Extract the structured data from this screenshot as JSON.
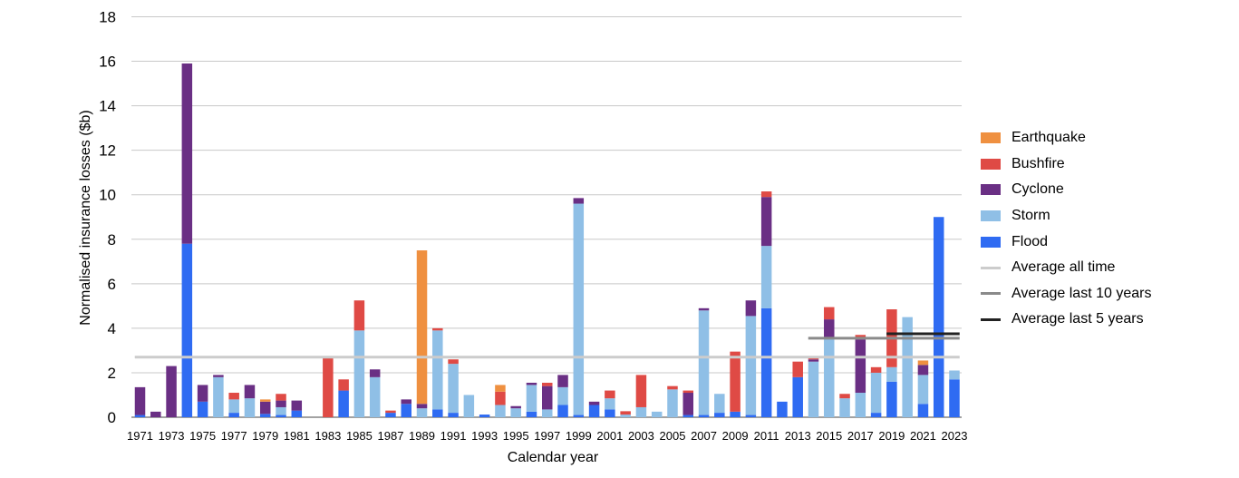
{
  "chart_data": {
    "type": "bar",
    "stacked": true,
    "xlabel": "Calendar year",
    "ylabel": "Normalised insurance losses ($b)",
    "ylim": [
      0,
      18
    ],
    "y_ticks": [
      "0",
      "2",
      "4",
      "6",
      "8",
      "10",
      "12",
      "14",
      "16",
      "18"
    ],
    "grid": true,
    "legend_position": "right",
    "categories": [
      "1971",
      "1972",
      "1973",
      "1974",
      "1975",
      "1976",
      "1977",
      "1978",
      "1979",
      "1980",
      "1981",
      "1982",
      "1983",
      "1984",
      "1985",
      "1986",
      "1987",
      "1988",
      "1989",
      "1990",
      "1991",
      "1992",
      "1993",
      "1994",
      "1995",
      "1996",
      "1997",
      "1998",
      "1999",
      "2000",
      "2001",
      "2002",
      "2003",
      "2004",
      "2005",
      "2006",
      "2007",
      "2008",
      "2009",
      "2010",
      "2011",
      "2012",
      "2013",
      "2014",
      "2015",
      "2016",
      "2017",
      "2018",
      "2019",
      "2020",
      "2021",
      "2022",
      "2023"
    ],
    "x_tick_labels": [
      "1971",
      "1973",
      "1975",
      "1977",
      "1979",
      "1981",
      "1983",
      "1985",
      "1987",
      "1989",
      "1991",
      "1993",
      "1995",
      "1997",
      "1999",
      "2001",
      "2003",
      "2005",
      "2007",
      "2009",
      "2011",
      "2013",
      "2015",
      "2017",
      "2019",
      "2021",
      "2023"
    ],
    "series": [
      {
        "name": "Flood",
        "color": "#2f6bf2",
        "values": [
          0.1,
          0,
          0,
          7.8,
          0.7,
          0,
          0.2,
          0,
          0.15,
          0.1,
          0.3,
          0,
          0,
          1.2,
          0,
          0,
          0.2,
          0.6,
          0,
          0.35,
          0.2,
          0,
          0.12,
          0,
          0,
          0.25,
          0,
          0.55,
          0.1,
          0.55,
          0.35,
          0,
          0,
          0,
          0,
          0.1,
          0.1,
          0.2,
          0.25,
          0.1,
          4.9,
          0.7,
          1.8,
          0,
          0,
          0,
          0,
          0.2,
          1.6,
          0,
          0.6,
          9.0,
          1.7
        ]
      },
      {
        "name": "Storm",
        "color": "#8fbfe6",
        "values": [
          0,
          0,
          0,
          0,
          0,
          1.8,
          0.6,
          0.85,
          0,
          0.35,
          0,
          0,
          0,
          0,
          3.9,
          1.8,
          0,
          0,
          0.4,
          3.55,
          2.2,
          1.0,
          0,
          0.55,
          0.4,
          1.2,
          0.35,
          0.8,
          9.5,
          0,
          0.5,
          0.12,
          0.45,
          0.25,
          1.25,
          0,
          4.7,
          0.85,
          0,
          4.45,
          2.8,
          0,
          0,
          2.5,
          3.6,
          0.85,
          1.1,
          1.8,
          0.65,
          4.5,
          1.3,
          0,
          0.4
        ]
      },
      {
        "name": "Cyclone",
        "color": "#6a2f84",
        "values": [
          1.25,
          0.25,
          2.3,
          8.1,
          0.75,
          0.1,
          0,
          0.6,
          0.55,
          0.3,
          0.45,
          0,
          0,
          0,
          0,
          0.35,
          0,
          0.2,
          0.2,
          0,
          0,
          0,
          0,
          0,
          0.1,
          0.1,
          1.05,
          0.55,
          0.25,
          0.15,
          0,
          0,
          0,
          0,
          0,
          1.0,
          0.1,
          0,
          0,
          0.7,
          2.2,
          0,
          0,
          0.1,
          0.8,
          0,
          2.4,
          0,
          0,
          0,
          0.45,
          0,
          0
        ]
      },
      {
        "name": "Bushfire",
        "color": "#df4a45",
        "values": [
          0,
          0,
          0,
          0,
          0,
          0,
          0.3,
          0,
          0,
          0.3,
          0,
          0,
          2.75,
          0.5,
          1.35,
          0,
          0.1,
          0,
          0,
          0.1,
          0.2,
          0,
          0,
          0.6,
          0,
          0,
          0.15,
          0,
          0,
          0,
          0.35,
          0.15,
          1.45,
          0,
          0.15,
          0.1,
          0,
          0,
          2.7,
          0,
          0.25,
          0,
          0.7,
          0.1,
          0.55,
          0.2,
          0.2,
          0.25,
          2.6,
          0,
          0,
          0,
          0
        ]
      },
      {
        "name": "Earthquake",
        "color": "#ef9040",
        "values": [
          0,
          0,
          0,
          0,
          0,
          0,
          0,
          0,
          0.1,
          0,
          0,
          0,
          0,
          0,
          0,
          0,
          0,
          0,
          6.9,
          0,
          0,
          0,
          0,
          0.3,
          0,
          0,
          0,
          0,
          0,
          0,
          0,
          0,
          0,
          0,
          0,
          0,
          0,
          0,
          0,
          0,
          0,
          0,
          0,
          0,
          0,
          0,
          0,
          0,
          0,
          0,
          0.2,
          0,
          0
        ]
      }
    ],
    "reference_lines": [
      {
        "name": "Average all time",
        "color": "#cccccc",
        "value": 2.7,
        "from": "1971",
        "to": "2023"
      },
      {
        "name": "Average last 10 years",
        "color": "#8a8a8a",
        "value": 3.55,
        "from": "2014",
        "to": "2023"
      },
      {
        "name": "Average last 5 years",
        "color": "#222222",
        "value": 3.75,
        "from": "2019",
        "to": "2023"
      }
    ],
    "legend": [
      {
        "label": "Earthquake",
        "color": "#ef9040",
        "kind": "box"
      },
      {
        "label": "Bushfire",
        "color": "#df4a45",
        "kind": "box"
      },
      {
        "label": "Cyclone",
        "color": "#6a2f84",
        "kind": "box"
      },
      {
        "label": "Storm",
        "color": "#8fbfe6",
        "kind": "box"
      },
      {
        "label": "Flood",
        "color": "#2f6bf2",
        "kind": "box"
      },
      {
        "label": "Average all time",
        "color": "#cccccc",
        "kind": "line"
      },
      {
        "label": "Average last 10 years",
        "color": "#8a8a8a",
        "kind": "line"
      },
      {
        "label": "Average last 5 years",
        "color": "#222222",
        "kind": "line"
      }
    ]
  }
}
